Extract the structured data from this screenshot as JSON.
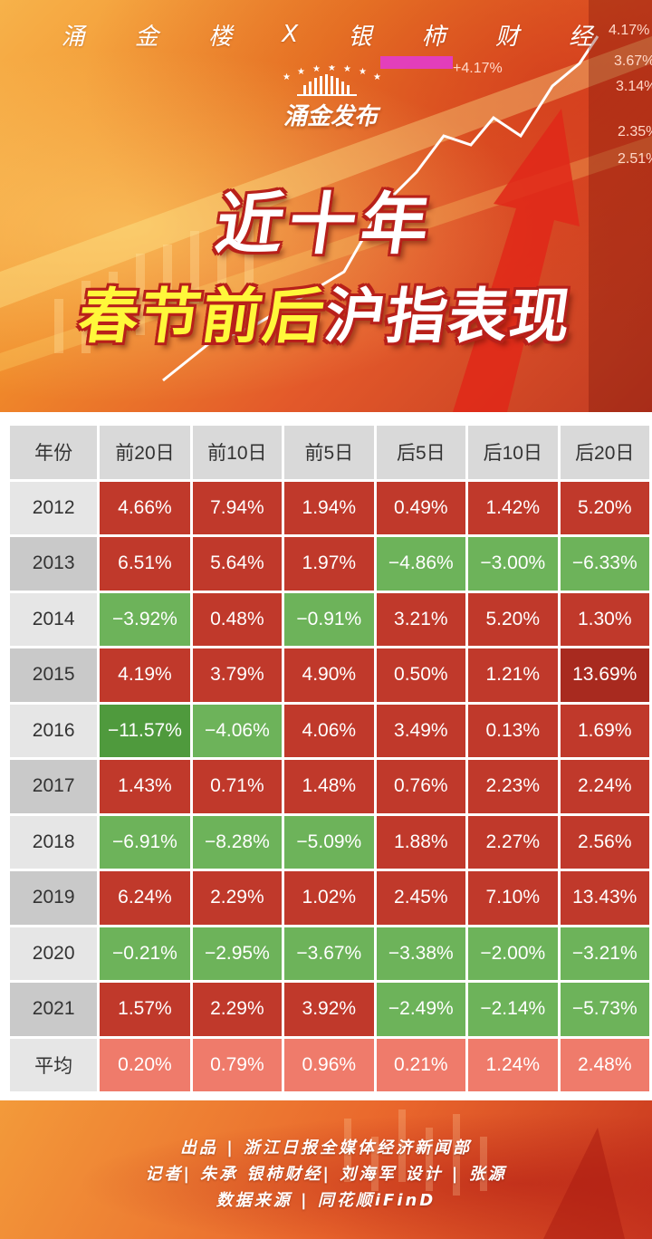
{
  "header": {
    "brand": [
      "涌",
      "金",
      "楼",
      "X",
      "银",
      "柿",
      "财",
      "经"
    ],
    "logo_text": "涌金发布",
    "title_line1": "近十年",
    "title_line2_highlight": "春节前后",
    "title_line2_rest": "沪指表现",
    "ticker_text": [
      "4.17%",
      "3.67%",
      "3.14%",
      "2.35%",
      "2.51%",
      "+4.17%"
    ]
  },
  "table": {
    "headers": [
      "年份",
      "前20日",
      "前10日",
      "前5日",
      "后5日",
      "后10日",
      "后20日"
    ],
    "rows": [
      {
        "year": "2012",
        "values": [
          "4.66%",
          "7.94%",
          "1.94%",
          "0.49%",
          "1.42%",
          "5.20%"
        ]
      },
      {
        "year": "2013",
        "values": [
          "6.51%",
          "5.64%",
          "1.97%",
          "−4.86%",
          "−3.00%",
          "−6.33%"
        ]
      },
      {
        "year": "2014",
        "values": [
          "−3.92%",
          "0.48%",
          "−0.91%",
          "3.21%",
          "5.20%",
          "1.30%"
        ]
      },
      {
        "year": "2015",
        "values": [
          "4.19%",
          "3.79%",
          "4.90%",
          "0.50%",
          "1.21%",
          "13.69%"
        ]
      },
      {
        "year": "2016",
        "values": [
          "−11.57%",
          "−4.06%",
          "4.06%",
          "3.49%",
          "0.13%",
          "1.69%"
        ]
      },
      {
        "year": "2017",
        "values": [
          "1.43%",
          "0.71%",
          "1.48%",
          "0.76%",
          "2.23%",
          "2.24%"
        ]
      },
      {
        "year": "2018",
        "values": [
          "−6.91%",
          "−8.28%",
          "−5.09%",
          "1.88%",
          "2.27%",
          "2.56%"
        ]
      },
      {
        "year": "2019",
        "values": [
          "6.24%",
          "2.29%",
          "1.02%",
          "2.45%",
          "7.10%",
          "13.43%"
        ]
      },
      {
        "year": "2020",
        "values": [
          "−0.21%",
          "−2.95%",
          "−3.67%",
          "−3.38%",
          "−2.00%",
          "−3.21%"
        ]
      },
      {
        "year": "2021",
        "values": [
          "1.57%",
          "2.29%",
          "3.92%",
          "−2.49%",
          "−2.14%",
          "−5.73%"
        ]
      },
      {
        "year": "平均",
        "values": [
          "0.20%",
          "0.79%",
          "0.96%",
          "0.21%",
          "1.24%",
          "2.48%"
        ]
      }
    ],
    "colors": {
      "positive": "#c0392b",
      "positive_strong": "#a82a1f",
      "negative": "#6db35a",
      "negative_strong": "#4f9a3d",
      "average": "#ef7b6b"
    }
  },
  "footer": {
    "line1": "出品 | 浙江日报全媒体经济新闻部",
    "line2": "记者| 朱承    银柿财经| 刘海军    设计 | 张源",
    "line3": "数据来源 | 同花顺iFinD"
  }
}
